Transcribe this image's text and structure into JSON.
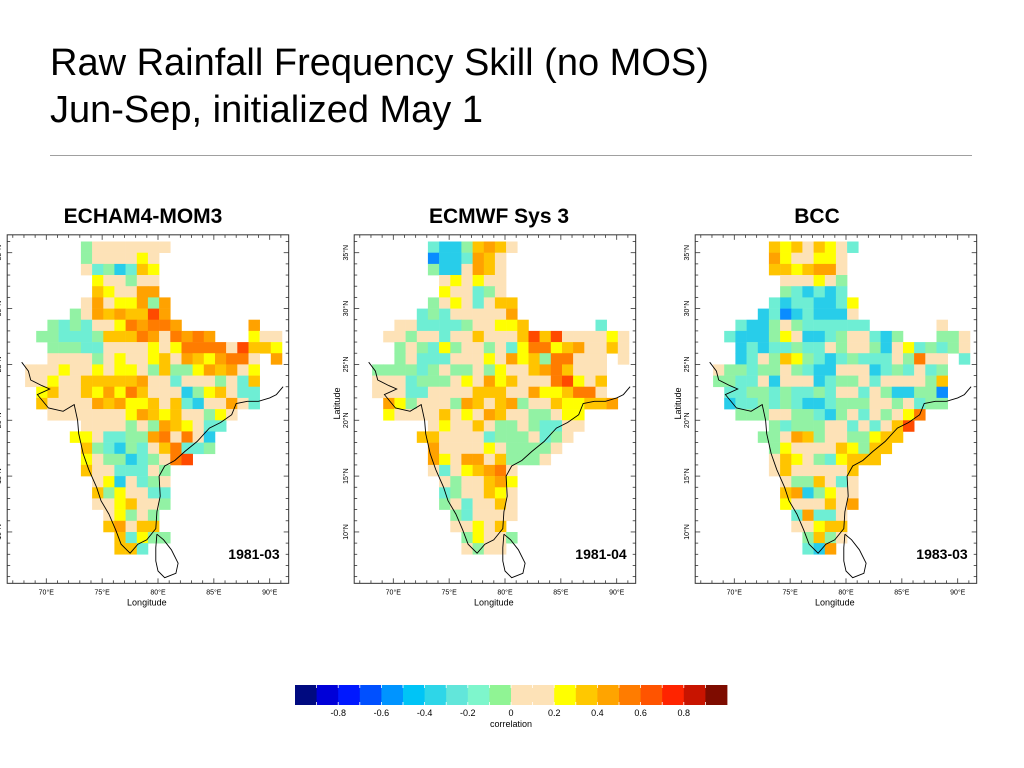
{
  "slide": {
    "title_line1": "Raw Rainfall Frequency Skill (no MOS)",
    "title_line2": "Jun-Sep, initialized May 1"
  },
  "axes": {
    "lon_ticks": [
      "70°E",
      "75°E",
      "80°E",
      "85°E",
      "90°E"
    ],
    "lon_values": [
      70,
      75,
      80,
      85,
      90
    ],
    "lat_ticks": [
      "10°N",
      "15°N",
      "20°N",
      "25°N",
      "30°N",
      "35°N"
    ],
    "lat_values": [
      10,
      15,
      20,
      25,
      30,
      35
    ],
    "xlabel": "Longitude",
    "ylabel": "Latitude",
    "grid_origin_lon": 68.1,
    "grid_top_lat": 36
  },
  "legend_codes": {
    "B": "#0a8cff",
    "c": "#28cdea",
    "t": "#6eeed4",
    "g": "#92f2a4",
    "b": "#fde2b7",
    "y": "#ffff00",
    "Y": "#ffc400",
    "o": "#ffa200",
    "O": "#ff7c00",
    "r": "#ff4a00"
  },
  "panels": [
    {
      "title": "ECHAM4-MOM3",
      "period": "1981-03",
      "show_ylabel": false,
      "grid": [
        ".....gbbbbbbb...........",
        ".....gbbbbyb............",
        ".....btgctYy............",
        "......ybbgbb............",
        "......Yybboo............",
        ".....bobyyogo...........",
        "....gboYoYYro...........",
        "..gtgtbbyOoOOo......o...",
        ".ggtttgYYYOobOoOo...ybb.",
        "..gggttbbbbybyOOOObrYYy.",
        "..bbbbgbybbyYboYyoOOb.o.",
        "bbbybbybyybgYggyoYoby...",
        "bbybbYYYYYobbtbbbgbtY...",
        ".yYbbYyoyOYbbbcgyYbtt...",
        ".YbbbboYoyyYbYtcbbobt...",
        "..bbbbbbbyoYyYbbgyb.....",
        ".....bbbbgbgoYybtt......",
        "....yybttggoObObc.......",
        ".....YgtcgtbYOttg.......",
        ".....ybggctgbOr.........",
        ".....Ybbtttbg...........",
        "......bycbtgb...........",
        "......Ygybbtt...........",
        "......bbyYbbg...........",
        ".......bygbg............",
        ".......YobYY............",
        "........Ytygg...........",
        "........YYt............."
      ]
    },
    {
      "title": "ECMWF Sys 3",
      "period": "1981-04",
      "show_ylabel": true,
      "grid": [
        ".....tccgYoYb...........",
        ".....BcctoYb............",
        ".....gccboYb............",
        "......bybybb............",
        "......ybbtgb............",
        ".....gbybtbYY...........",
        "....tgtbbbbbo...........",
        "..bbttttgbbyyY......t...",
        ".bbgbbtbbYbbbYrYrbbbbyb.",
        "..gbgtygbbgbtyOOyYobbYb.",
        "..gbtttbbbyboyYgOObbb.b.",
        "ggggtgbggbgybbYoOYbbb...",
        "bbbtgggbyboyYbbbOrybY...",
        "bbbttbbbbYYYbboyyYOOb...",
        ".oygbbbgoYbYogbbYyyYYo..",
        ".ybbbbYbyboYbbggbyy.....",
        ".....bybbYbggbgttbb.....",
        "....YYbbbbtgggbtgb......",
        ".....obbbbybggggb.......",
        ".....oyboobYgggb........",
        ".....btbyYoOb...........",
        "......bgbbYoy...........",
        "......tgbbYyb...........",
        "......gbtbbYb...........",
        ".......gtbbbb...........",
        ".......bbybY............",
        "........gybbg...........",
        "........bgbb............"
      ]
    },
    {
      "title": "BCC",
      "period": "1983-03",
      "show_ylabel": true,
      "grid": [
        ".....YyYbYybt...........",
        ".....oybbyyb............",
        ".....YYyYoob............",
        "......bbbybg............",
        "......gtctct............",
        ".....tcttccty...........",
        "....ctBctcccb...........",
        "..tccgbgtttttt......b...",
        ".tcccgybcctgbbtcg...ggb.",
        "..ctcttgttbgbbgcbytgtgb.",
        "..ctbgYygtctgtttbgObb.t.",
        "bggtggbgtccbbbctgtbtg...",
        "ggttbcbbbctggbtbbbbgY...",
        ".ttggtgttgtbbtbgccggB...",
        ".cttgtgtcctgggbbgbtgg...",
        "..gggbbggtcgbtbgbyO.....",
        ".....gtgggbbtbtbYr......",
        "....ggboYgbbggyYY.......",
        ".....gybbbbYygYY........",
        ".....bYybgtyYYY.........",
        ".....bYbbbbbY...........",
        "......bggYbtb...........",
        "......Yocgybb...........",
        "......ybbbYbo...........",
        ".......tottb............",
        ".......bbyYY............",
        "........gYgb............",
        "........tco............."
      ]
    }
  ],
  "colorbar": {
    "label": "correlation",
    "range": [
      -1,
      1
    ],
    "tick_labels": [
      "-0.8",
      "-0.6",
      "-0.4",
      "-0.2",
      "0",
      "0.2",
      "0.4",
      "0.6",
      "0.8"
    ],
    "tick_values": [
      -0.8,
      -0.6,
      -0.4,
      -0.2,
      0,
      0.2,
      0.4,
      0.6,
      0.8
    ],
    "bin_colors": [
      "#000a80",
      "#0000d8",
      "#0018ff",
      "#0050ff",
      "#0094ff",
      "#00c4f6",
      "#2ed6e8",
      "#62e6da",
      "#7ef6cc",
      "#90f494",
      "#fde2b7",
      "#fde2b7",
      "#ffff00",
      "#ffc800",
      "#ffa400",
      "#ff7c00",
      "#ff5400",
      "#ff2400",
      "#c81400",
      "#7e0c00"
    ]
  }
}
